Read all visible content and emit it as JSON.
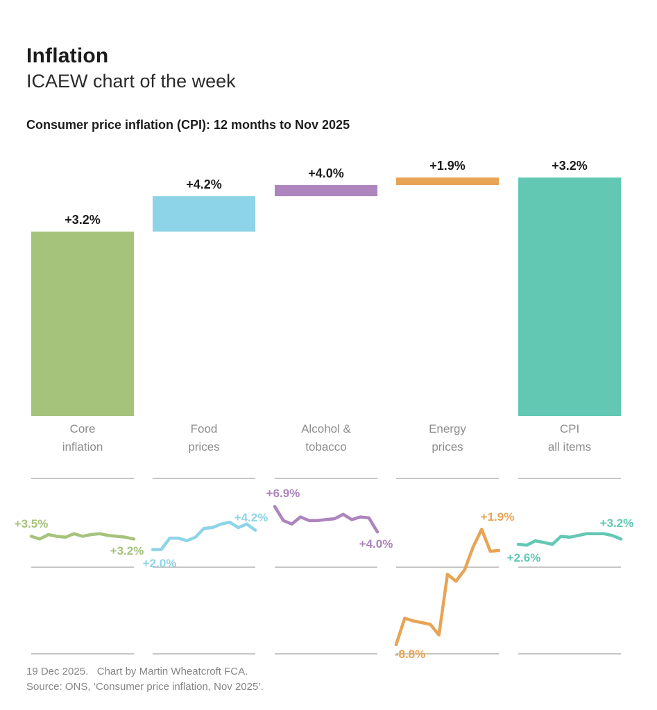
{
  "header": {
    "title": "Inflation",
    "subtitle": "ICAEW chart of the week"
  },
  "chart_data": {
    "type": "bar",
    "subtype": "waterfall-with-sparkline-small-multiples",
    "title": "Consumer price inflation (CPI): 12 months to Nov 2025",
    "legend_position": "none",
    "grid": "sparkline gridlines at +10%, 0%, -10%",
    "sparkline_axis": {
      "top_gridline_pct": 10,
      "zero_gridline_pct": 0,
      "bottom_gridline_pct": -10
    },
    "categories": [
      {
        "name": "Core inflation",
        "label_lines": [
          "Core",
          "inflation"
        ],
        "rate_label": "+3.2%",
        "rate_pct": 3.2,
        "contribution_pp": 2.47,
        "is_total": false,
        "color": "#a6c37c",
        "sparkline": {
          "start_label": "+3.5%",
          "end_label": "+3.2%",
          "monthly_values_pct": [
            3.5,
            3.2,
            3.7,
            3.5,
            3.4,
            3.8,
            3.5,
            3.7,
            3.8,
            3.6,
            3.5,
            3.4,
            3.2
          ]
        }
      },
      {
        "name": "Food prices",
        "label_lines": [
          "Food",
          "prices"
        ],
        "rate_label": "+4.2%",
        "rate_pct": 4.2,
        "contribution_pp": 0.48,
        "is_total": false,
        "color": "#8ed4e8",
        "sparkline": {
          "start_label": "+2.0%",
          "end_label": "+4.2%",
          "monthly_values_pct": [
            2.0,
            2.0,
            3.3,
            3.3,
            3.0,
            3.4,
            4.4,
            4.5,
            4.9,
            5.1,
            4.5,
            4.9,
            4.2
          ]
        }
      },
      {
        "name": "Alcohol & tobacco",
        "label_lines": [
          "Alcohol &",
          "tobacco"
        ],
        "rate_label": "+4.0%",
        "rate_pct": 4.0,
        "contribution_pp": 0.15,
        "is_total": false,
        "color": "#ad84bd",
        "sparkline": {
          "start_label": "+6.9%",
          "end_label": "+4.0%",
          "monthly_values_pct": [
            6.9,
            5.3,
            4.9,
            5.7,
            5.3,
            5.3,
            5.4,
            5.5,
            6.0,
            5.4,
            5.7,
            5.6,
            4.0
          ]
        }
      },
      {
        "name": "Energy prices",
        "label_lines": [
          "Energy",
          "prices"
        ],
        "rate_label": "+1.9%",
        "rate_pct": 1.9,
        "contribution_pp": 0.1,
        "is_total": false,
        "color": "#e7a455",
        "sparkline": {
          "start_label": "-8.8%",
          "end_label": "+1.9%",
          "monthly_values_pct": [
            -8.8,
            -5.8,
            -6.1,
            -6.3,
            -6.5,
            -7.7,
            -0.8,
            -1.6,
            -0.3,
            2.3,
            4.3,
            1.8,
            1.9
          ]
        }
      },
      {
        "name": "CPI all items",
        "label_lines": [
          "CPI",
          "all items"
        ],
        "rate_label": "+3.2%",
        "rate_pct": 3.2,
        "contribution_pp": 3.2,
        "is_total": true,
        "color": "#62c8b4",
        "sparkline": {
          "start_label": "+2.6%",
          "end_label": "+3.2%",
          "monthly_values_pct": [
            2.6,
            2.5,
            3.0,
            2.8,
            2.6,
            3.5,
            3.4,
            3.6,
            3.8,
            3.8,
            3.8,
            3.6,
            3.2
          ]
        }
      }
    ]
  },
  "colors": {
    "core": "#a6c37c",
    "food": "#8ed4e8",
    "alcohol": "#ad84bd",
    "energy": "#e7a455",
    "cpi": "#62c8b4",
    "gridline": "#b3b3b3",
    "category_label": "#8d8d8d",
    "footer_text": "#858585"
  },
  "footer": {
    "line1": "19 Dec 2025.   Chart by Martin Wheatcroft FCA.",
    "line2": "Source: ONS, ‘Consumer price inflation, Nov 2025’."
  }
}
